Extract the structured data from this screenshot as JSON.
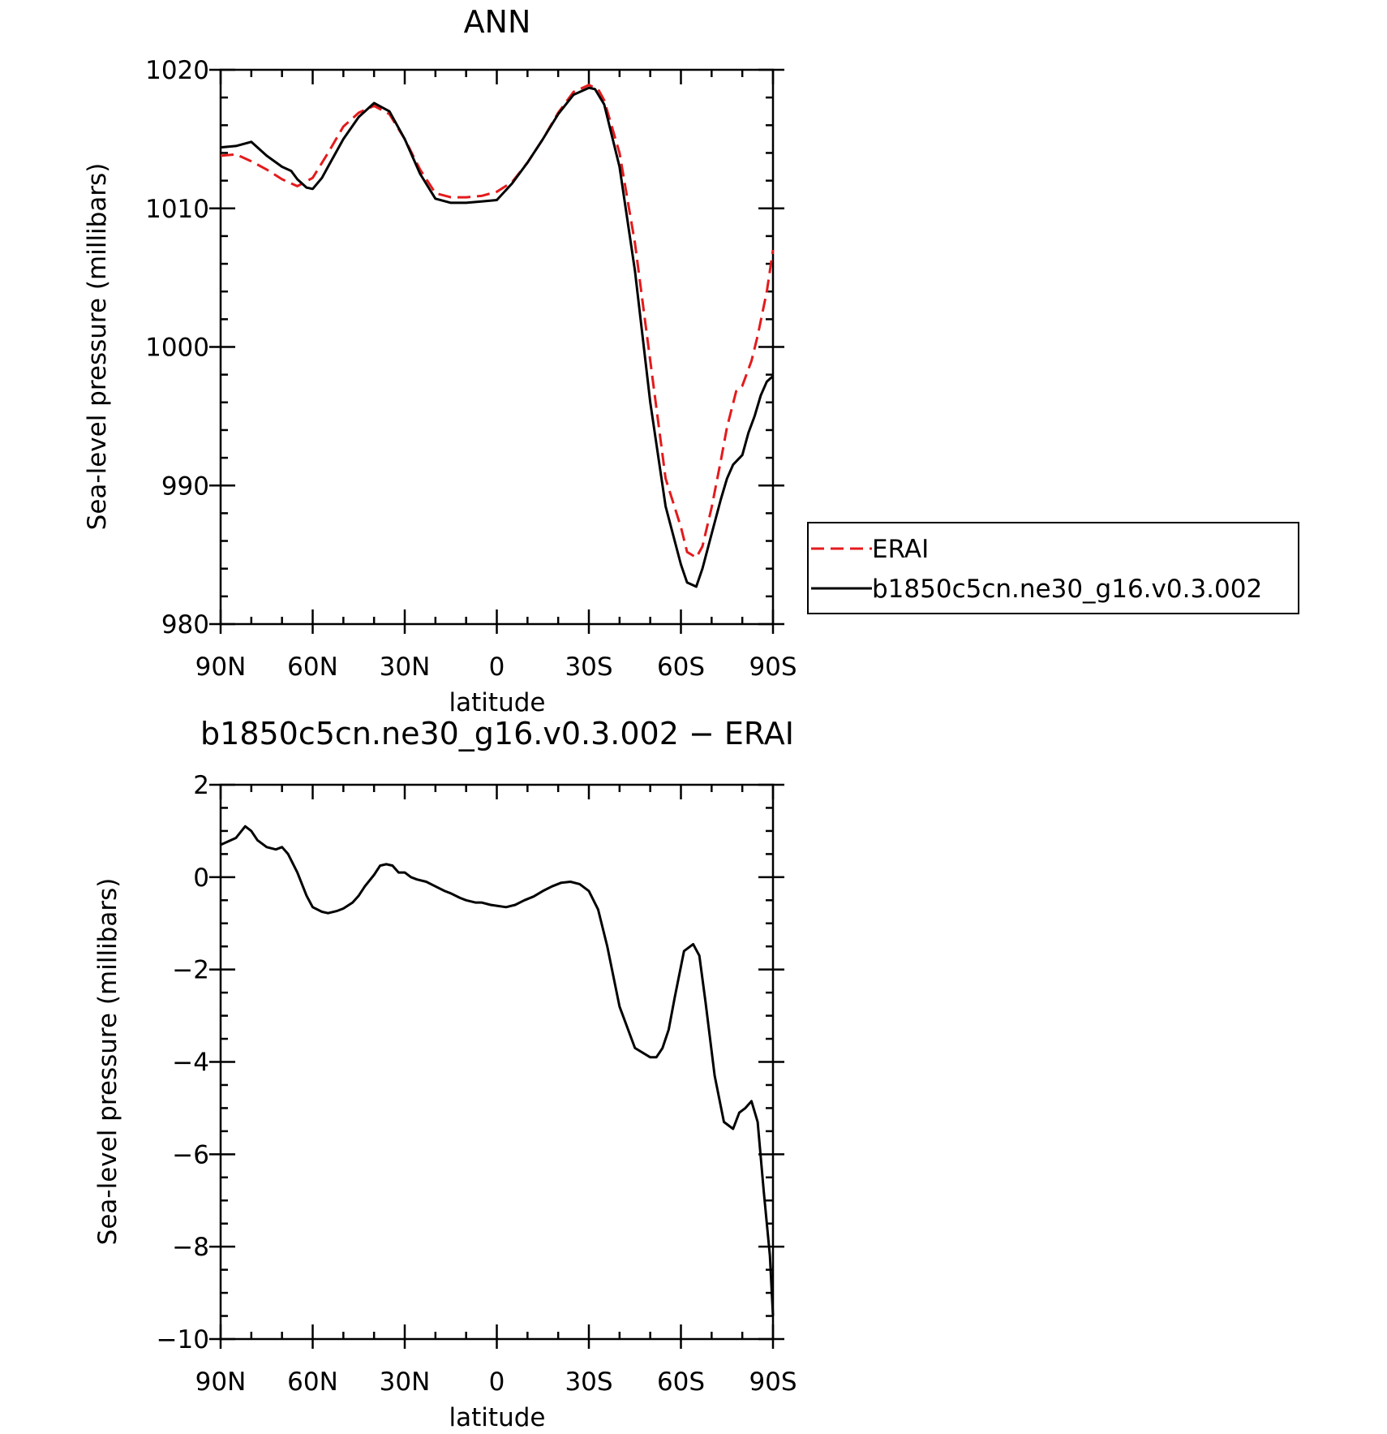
{
  "chart_data": [
    {
      "type": "line",
      "title": "ANN",
      "xlabel": "latitude",
      "ylabel": "Sea-level pressure (millibars)",
      "x_tick_labels": [
        "90N",
        "60N",
        "30N",
        "0",
        "30S",
        "60S",
        "90S"
      ],
      "x_tick_values": [
        90,
        60,
        30,
        0,
        -30,
        -60,
        -90
      ],
      "y_tick_labels": [
        "980",
        "990",
        "1000",
        "1010",
        "1020"
      ],
      "y_tick_values": [
        980,
        990,
        1000,
        1010,
        1020
      ],
      "xlim": [
        90,
        -90
      ],
      "ylim": [
        980,
        1020
      ],
      "grid": false,
      "legend_position": "right",
      "series": [
        {
          "name": "ERAI",
          "color": "#e41a1c",
          "dash": "dashed",
          "x": [
            90,
            85,
            80,
            75,
            70,
            65,
            60,
            55,
            50,
            45,
            40,
            35,
            30,
            25,
            20,
            15,
            10,
            5,
            0,
            -5,
            -10,
            -15,
            -20,
            -25,
            -30,
            -33,
            -35,
            -40,
            -45,
            -50,
            -55,
            -60,
            -62,
            -65,
            -67,
            -70,
            -73,
            -75,
            -78,
            -80,
            -83,
            -85,
            -88,
            -90
          ],
          "values": [
            1013.8,
            1013.9,
            1013.4,
            1012.8,
            1012.1,
            1011.6,
            1012.2,
            1014.0,
            1015.9,
            1016.9,
            1017.4,
            1016.8,
            1015.0,
            1012.8,
            1011.1,
            1010.8,
            1010.8,
            1010.9,
            1011.2,
            1011.9,
            1013.3,
            1015.0,
            1016.9,
            1018.4,
            1018.9,
            1018.6,
            1017.8,
            1014.0,
            1007.5,
            999.0,
            990.5,
            987.0,
            985.2,
            984.8,
            985.6,
            988.4,
            991.8,
            994.2,
            996.8,
            997.2,
            999.0,
            1000.8,
            1004.0,
            1007.0
          ]
        },
        {
          "name": "b1850c5cn.ne30_g16.v0.3.002",
          "color": "#000000",
          "dash": "solid",
          "x": [
            90,
            85,
            80,
            75,
            70,
            67,
            65,
            62,
            60,
            57,
            55,
            50,
            45,
            40,
            35,
            30,
            25,
            20,
            15,
            10,
            5,
            0,
            -5,
            -10,
            -15,
            -20,
            -25,
            -30,
            -32,
            -35,
            -40,
            -45,
            -50,
            -55,
            -60,
            -62,
            -65,
            -67,
            -70,
            -73,
            -75,
            -77,
            -80,
            -82,
            -84,
            -86,
            -88,
            -90
          ],
          "values": [
            1014.4,
            1014.5,
            1014.8,
            1013.8,
            1013.0,
            1012.7,
            1012.1,
            1011.5,
            1011.4,
            1012.2,
            1013.0,
            1015.0,
            1016.6,
            1017.6,
            1017.0,
            1015.0,
            1012.5,
            1010.7,
            1010.4,
            1010.4,
            1010.5,
            1010.6,
            1011.8,
            1013.3,
            1015.0,
            1016.8,
            1018.2,
            1018.7,
            1018.6,
            1017.5,
            1013.0,
            1005.5,
            996.0,
            988.5,
            984.3,
            983.0,
            982.7,
            984.0,
            986.5,
            989.0,
            990.5,
            991.5,
            992.2,
            993.8,
            995.0,
            996.5,
            997.5,
            997.9
          ]
        }
      ]
    },
    {
      "type": "line",
      "title": "b1850c5cn.ne30_g16.v0.3.002 − ERAI",
      "xlabel": "latitude",
      "ylabel": "Sea-level pressure (millibars)",
      "x_tick_labels": [
        "90N",
        "60N",
        "30N",
        "0",
        "30S",
        "60S",
        "90S"
      ],
      "x_tick_values": [
        90,
        60,
        30,
        0,
        -30,
        -60,
        -90
      ],
      "y_tick_labels": [
        "−10",
        "−8",
        "−6",
        "−4",
        "−2",
        "0",
        "2"
      ],
      "y_tick_values": [
        -10,
        -8,
        -6,
        -4,
        -2,
        0,
        2
      ],
      "xlim": [
        90,
        -90
      ],
      "ylim": [
        -10,
        2
      ],
      "grid": false,
      "series": [
        {
          "color": "#000000",
          "dash": "solid",
          "x": [
            90,
            85,
            82,
            80,
            78,
            75,
            72,
            70,
            68,
            65,
            62,
            60,
            57,
            55,
            52,
            50,
            47,
            45,
            43,
            40,
            38,
            36,
            34,
            32,
            30,
            28,
            26,
            23,
            20,
            17,
            15,
            12,
            10,
            7,
            5,
            2,
            0,
            -3,
            -6,
            -9,
            -12,
            -15,
            -18,
            -21,
            -24,
            -27,
            -30,
            -33,
            -36,
            -40,
            -45,
            -50,
            -52,
            -54,
            -56,
            -58,
            -61,
            -64,
            -66,
            -68,
            -71,
            -74,
            -77,
            -79,
            -81,
            -83,
            -85,
            -87,
            -89,
            -90
          ],
          "values": [
            0.7,
            0.85,
            1.1,
            1.0,
            0.8,
            0.65,
            0.6,
            0.65,
            0.5,
            0.1,
            -0.4,
            -0.65,
            -0.75,
            -0.78,
            -0.73,
            -0.68,
            -0.55,
            -0.4,
            -0.2,
            0.05,
            0.25,
            0.28,
            0.25,
            0.1,
            0.1,
            0.0,
            -0.05,
            -0.1,
            -0.2,
            -0.3,
            -0.35,
            -0.45,
            -0.5,
            -0.55,
            -0.55,
            -0.6,
            -0.62,
            -0.65,
            -0.6,
            -0.5,
            -0.42,
            -0.3,
            -0.2,
            -0.12,
            -0.1,
            -0.15,
            -0.3,
            -0.7,
            -1.5,
            -2.8,
            -3.7,
            -3.9,
            -3.9,
            -3.7,
            -3.3,
            -2.6,
            -1.6,
            -1.45,
            -1.7,
            -2.7,
            -4.3,
            -5.3,
            -5.45,
            -5.1,
            -5.0,
            -4.85,
            -5.3,
            -6.8,
            -8.2,
            -9.5
          ]
        }
      ]
    }
  ],
  "legend": {
    "items": [
      {
        "label": "ERAI",
        "color": "#e41a1c",
        "dash": "dashed"
      },
      {
        "label": "b1850c5cn.ne30_g16.v0.3.002",
        "color": "#000000",
        "dash": "solid"
      }
    ]
  }
}
